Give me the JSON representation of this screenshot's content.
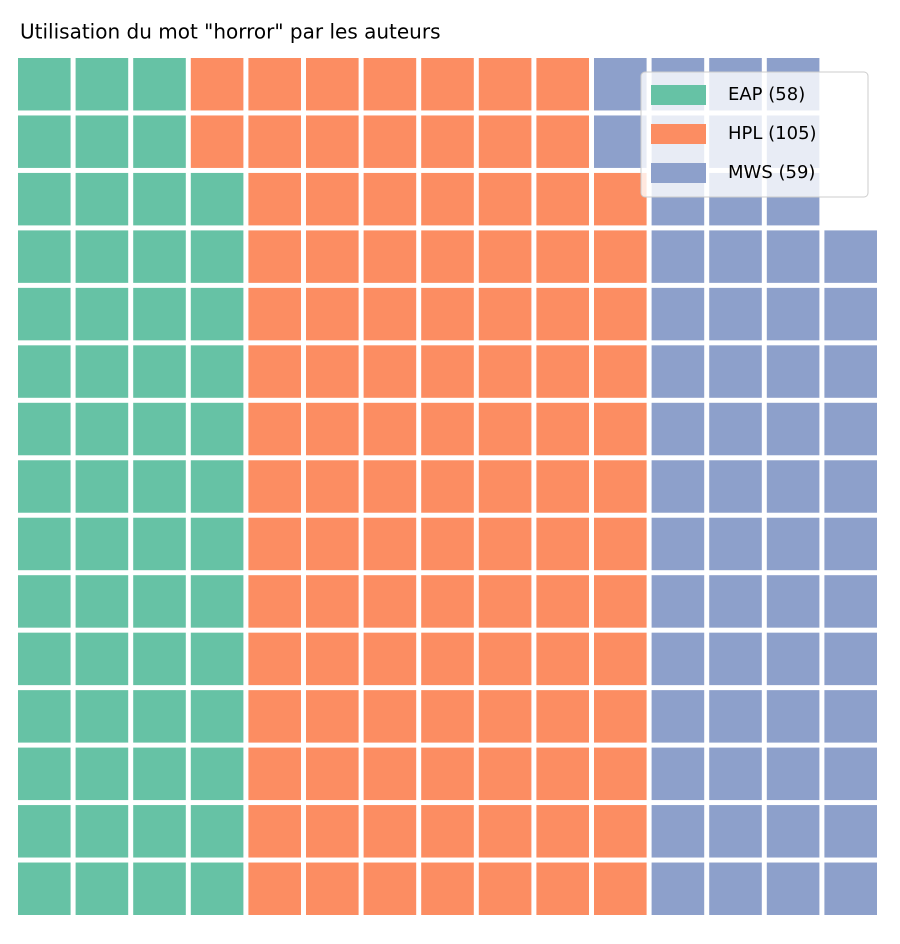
{
  "chart_data": {
    "type": "waffle",
    "title": "Utilisation du mot \"horror\" par les auteurs",
    "series": [
      {
        "name": "EAP (58)",
        "color": "#66c2a5",
        "value": 58
      },
      {
        "name": "HPL (105)",
        "color": "#fc8d62",
        "value": 105
      },
      {
        "name": "MWS (59)",
        "color": "#8da0cb",
        "value": 59
      }
    ],
    "legend": "upper right"
  }
}
